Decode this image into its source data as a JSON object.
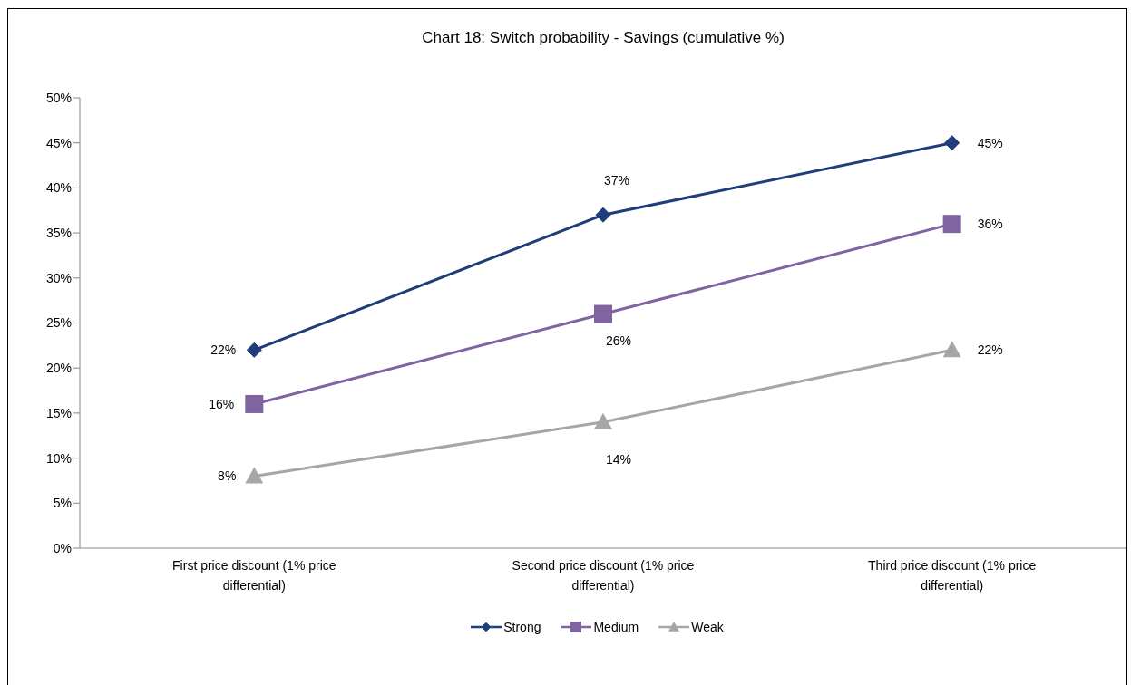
{
  "chart_data": {
    "type": "line",
    "title": "Chart 18: Switch probability - Savings (cumulative %)",
    "categories": [
      "First price discount (1% price differential)",
      "Second price discount (1% price differential)",
      "Third price discount (1% price differential)"
    ],
    "series": [
      {
        "name": "Strong",
        "color": "#1f3d7a",
        "marker": "diamond",
        "values": [
          22,
          37,
          45
        ],
        "value_labels": [
          "22%",
          "37%",
          "45%"
        ]
      },
      {
        "name": "Medium",
        "color": "#8064a2",
        "marker": "square",
        "values": [
          16,
          26,
          36
        ],
        "value_labels": [
          "16%",
          "26%",
          "36%"
        ]
      },
      {
        "name": "Weak",
        "color": "#a6a6a6",
        "marker": "triangle",
        "values": [
          8,
          14,
          22
        ],
        "value_labels": [
          "8%",
          "14%",
          "22%"
        ]
      }
    ],
    "ylim": [
      0,
      50
    ],
    "yticks": [
      {
        "value": 0,
        "label": "0%"
      },
      {
        "value": 5,
        "label": "5%"
      },
      {
        "value": 10,
        "label": "10%"
      },
      {
        "value": 15,
        "label": "15%"
      },
      {
        "value": 20,
        "label": "20%"
      },
      {
        "value": 25,
        "label": "25%"
      },
      {
        "value": 30,
        "label": "30%"
      },
      {
        "value": 35,
        "label": "35%"
      },
      {
        "value": 40,
        "label": "40%"
      },
      {
        "value": 45,
        "label": "45%"
      },
      {
        "value": 50,
        "label": "50%"
      }
    ],
    "legend": "bottom"
  }
}
